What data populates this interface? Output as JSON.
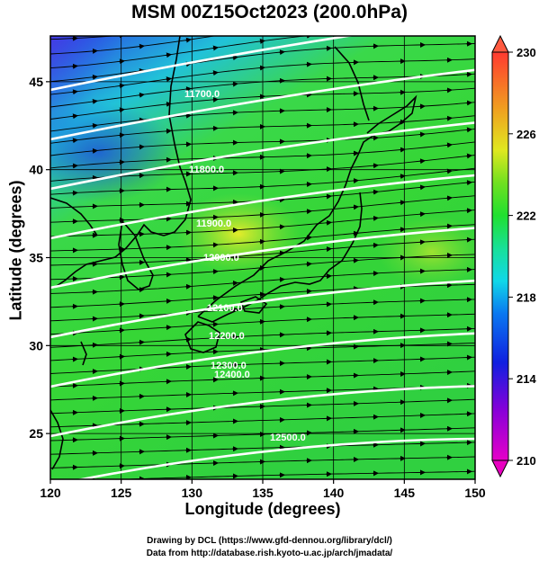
{
  "title": "MSM 00Z15Oct2023 (200.0hPa)",
  "axes": {
    "xlabel": "Longitude (degrees)",
    "ylabel": "Latitude  (degrees)",
    "xticks": [
      120,
      125,
      130,
      135,
      140,
      145,
      150
    ],
    "yticks": [
      25,
      30,
      35,
      40,
      45
    ],
    "xlim": [
      120,
      150
    ],
    "ylim": [
      22.4,
      47.6
    ]
  },
  "colorbar": {
    "ticks": [
      230,
      226,
      222,
      218,
      214,
      210
    ],
    "min": 210,
    "max": 230
  },
  "contours": [
    {
      "label": "11700.0"
    },
    {
      "label": "11800.0"
    },
    {
      "label": "11900.0"
    },
    {
      "label": "12000.0"
    },
    {
      "label": "12100.0"
    },
    {
      "label": "12200.0"
    },
    {
      "label": "12300.0"
    },
    {
      "label": "12400.0"
    },
    {
      "label": "12500.0"
    }
  ],
  "credits": {
    "line1": "Drawing by DCL (https://www.gfd-dennou.org/library/dcl/)",
    "line2": "Data from http://database.rish.kyoto-u.ac.jp/arch/jmadata/"
  }
}
